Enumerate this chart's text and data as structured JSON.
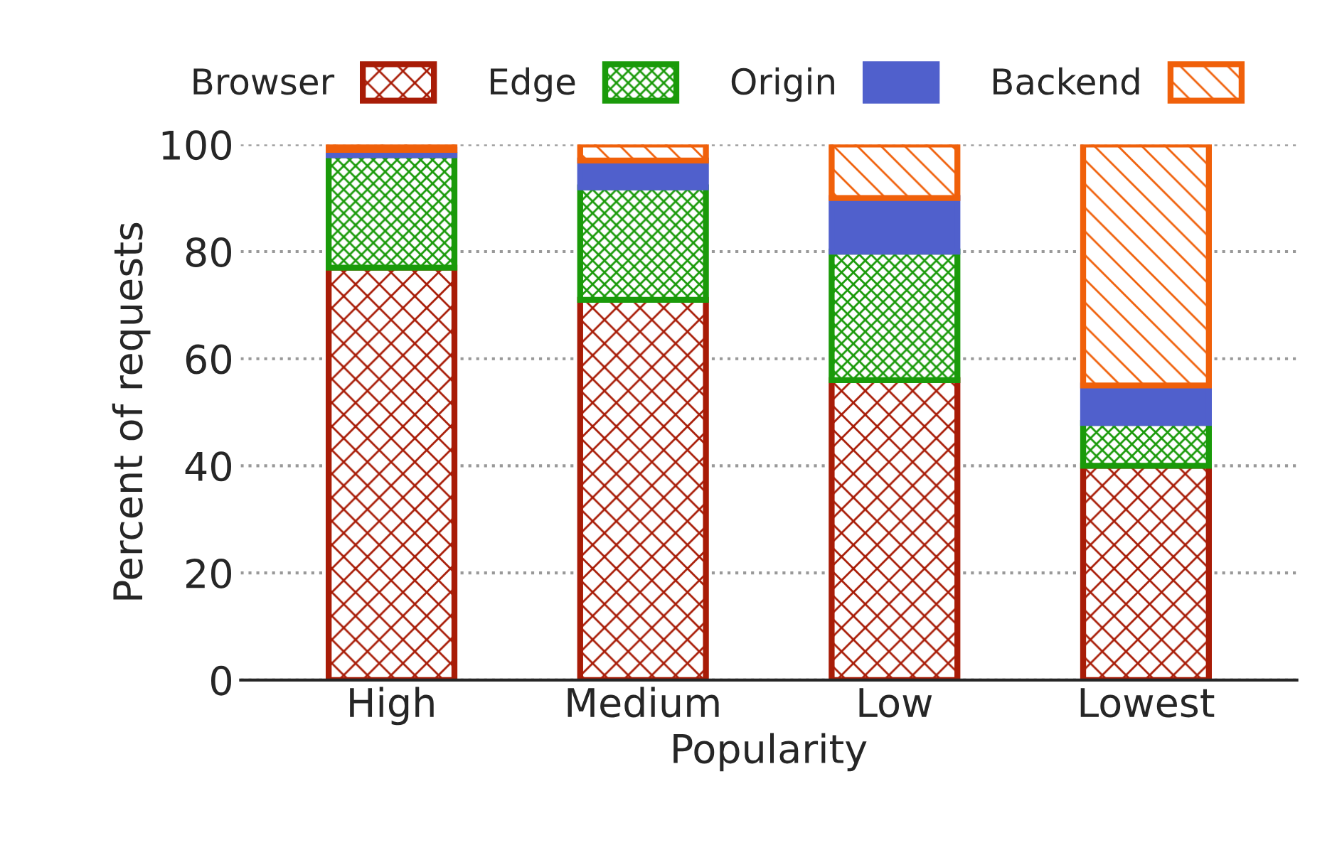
{
  "chart_data": {
    "type": "bar",
    "stacked": true,
    "xlabel": "Popularity",
    "ylabel": "Percent of requests",
    "categories": [
      "High",
      "Medium",
      "Low",
      "Lowest"
    ],
    "series": [
      {
        "name": "Browser",
        "color": "#a81c07",
        "values": [
          77,
          71,
          56,
          40
        ]
      },
      {
        "name": "Edge",
        "color": "#1a9a0a",
        "values": [
          21,
          21,
          24,
          8
        ]
      },
      {
        "name": "Origin",
        "color": "#5060cc",
        "values": [
          1,
          5,
          10,
          7
        ]
      },
      {
        "name": "Backend",
        "color": "#f0600a",
        "values": [
          1,
          3,
          10,
          45
        ]
      }
    ],
    "ylim": [
      0,
      100
    ],
    "yticks": [
      0,
      20,
      40,
      60,
      80,
      100
    ],
    "grid": "y",
    "legend": "top"
  }
}
